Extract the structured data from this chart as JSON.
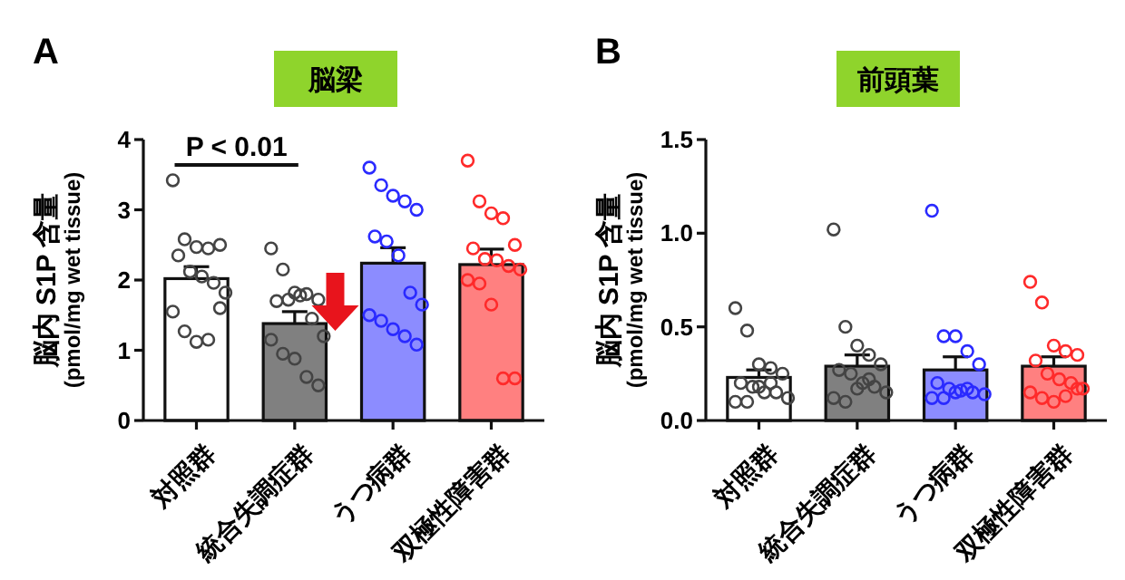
{
  "chart_data": [
    {
      "type": "bar",
      "title": "脳梁",
      "ylabel": "脳内 S1P 含量\n(pmol/mg wet tissue)",
      "annotations": [
        "A",
        "P < 0.01"
      ],
      "categories": [
        "対照群",
        "統合失調症群",
        "うつ病群",
        "双極性障害群"
      ],
      "ylim": [
        0,
        4
      ],
      "yticks": [
        0,
        1,
        2,
        3,
        4
      ],
      "series": [
        {
          "type": "bar",
          "values": [
            2.02,
            1.38,
            2.24,
            2.22
          ],
          "errors": [
            0.17,
            0.17,
            0.22,
            0.22
          ],
          "colors": [
            "#ffffff",
            "#808080",
            "#8c8cff",
            "#ff8080"
          ]
        },
        {
          "type": "scatter",
          "marker": "circle",
          "x": [
            "対照群",
            "対照群",
            "対照群",
            "対照群",
            "対照群",
            "対照群",
            "対照群",
            "対照群",
            "対照群",
            "対照群",
            "対照群",
            "対照群",
            "対照群",
            "対照群",
            "対照群",
            "統合失調症群",
            "統合失調症群",
            "統合失調症群",
            "統合失調症群",
            "統合失調症群",
            "統合失調症群",
            "統合失調症群",
            "統合失調症群",
            "統合失調症群",
            "統合失調症群",
            "統合失調症群",
            "統合失調症群",
            "統合失調症群",
            "統合失調症群",
            "統合失調症群",
            "うつ病群",
            "うつ病群",
            "うつ病群",
            "うつ病群",
            "うつ病群",
            "うつ病群",
            "うつ病群",
            "うつ病群",
            "うつ病群",
            "うつ病群",
            "うつ病群",
            "うつ病群",
            "うつ病群",
            "うつ病群",
            "うつ病群",
            "双極性障害群",
            "双極性障害群",
            "双極性障害群",
            "双極性障害群",
            "双極性障害群",
            "双極性障害群",
            "双極性障害群",
            "双極性障害群",
            "双極性障害群",
            "双極性障害群",
            "双極性障害群",
            "双極性障害群",
            "双極性障害群",
            "双極性障害群",
            "双極性障害群"
          ],
          "values": [
            3.42,
            2.58,
            2.47,
            2.45,
            2.5,
            2.35,
            2.12,
            2.05,
            1.96,
            1.82,
            1.55,
            1.27,
            1.12,
            1.15,
            1.6,
            2.45,
            2.15,
            1.82,
            1.8,
            1.72,
            1.7,
            1.72,
            1.78,
            1.45,
            1.2,
            1.15,
            0.95,
            0.88,
            0.62,
            0.5,
            3.6,
            3.35,
            3.2,
            3.12,
            3.0,
            2.62,
            2.55,
            2.35,
            1.82,
            1.65,
            1.5,
            1.42,
            1.3,
            1.2,
            1.08,
            3.7,
            3.12,
            2.95,
            2.88,
            2.5,
            2.45,
            2.3,
            2.28,
            2.2,
            2.15,
            2.0,
            1.95,
            1.65,
            0.6,
            0.6
          ],
          "colors": [
            "#444444",
            "#444444",
            "#444444",
            "#444444",
            "#444444",
            "#444444",
            "#444444",
            "#444444",
            "#444444",
            "#444444",
            "#444444",
            "#444444",
            "#444444",
            "#444444",
            "#444444",
            "#444444",
            "#444444",
            "#444444",
            "#444444",
            "#444444",
            "#444444",
            "#444444",
            "#444444",
            "#444444",
            "#444444",
            "#444444",
            "#444444",
            "#444444",
            "#444444",
            "#444444",
            "#2a2aff",
            "#2a2aff",
            "#2a2aff",
            "#2a2aff",
            "#2a2aff",
            "#2a2aff",
            "#2a2aff",
            "#2a2aff",
            "#2a2aff",
            "#2a2aff",
            "#2a2aff",
            "#2a2aff",
            "#2a2aff",
            "#2a2aff",
            "#2a2aff",
            "#ff2a2a",
            "#ff2a2a",
            "#ff2a2a",
            "#ff2a2a",
            "#ff2a2a",
            "#ff2a2a",
            "#ff2a2a",
            "#ff2a2a",
            "#ff2a2a",
            "#ff2a2a",
            "#ff2a2a",
            "#ff2a2a",
            "#ff2a2a",
            "#ff2a2a",
            "#ff2a2a"
          ]
        }
      ]
    },
    {
      "type": "bar",
      "title": "前頭葉",
      "ylabel": "脳内 S1P 含量\n(pmol/mg wet tissue)",
      "annotations": [
        "B"
      ],
      "categories": [
        "対照群",
        "統合失調症群",
        "うつ病群",
        "双極性障害群"
      ],
      "ylim": [
        0,
        1.5
      ],
      "yticks": [
        {
          "value": 0,
          "label": "0.0"
        },
        0.5,
        {
          "value": 1,
          "label": "1.0"
        },
        1.5
      ],
      "series": [
        {
          "type": "bar",
          "values": [
            0.23,
            0.29,
            0.27,
            0.29
          ],
          "errors": [
            0.04,
            0.06,
            0.07,
            0.05
          ],
          "colors": [
            "#ffffff",
            "#808080",
            "#8c8cff",
            "#ff8080"
          ]
        },
        {
          "type": "scatter",
          "marker": "circle",
          "x": [
            "対照群",
            "対照群",
            "対照群",
            "対照群",
            "対照群",
            "対照群",
            "対照群",
            "対照群",
            "対照群",
            "対照群",
            "対照群",
            "対照群",
            "対照群",
            "対照群",
            "統合失調症群",
            "統合失調症群",
            "統合失調症群",
            "統合失調症群",
            "統合失調症群",
            "統合失調症群",
            "統合失調症群",
            "統合失調症群",
            "統合失調症群",
            "統合失調症群",
            "統合失調症群",
            "統合失調症群",
            "統合失調症群",
            "統合失調症群",
            "うつ病群",
            "うつ病群",
            "うつ病群",
            "うつ病群",
            "うつ病群",
            "うつ病群",
            "うつ病群",
            "うつ病群",
            "うつ病群",
            "うつ病群",
            "うつ病群",
            "うつ病群",
            "うつ病群",
            "うつ病群",
            "双極性障害群",
            "双極性障害群",
            "双極性障害群",
            "双極性障害群",
            "双極性障害群",
            "双極性障害群",
            "双極性障害群",
            "双極性障害群",
            "双極性障害群",
            "双極性障害群",
            "双極性障害群",
            "双極性障害群",
            "双極性障害群",
            "双極性障害群",
            "双極性障害群"
          ],
          "values": [
            0.6,
            0.48,
            0.3,
            0.28,
            0.25,
            0.2,
            0.18,
            0.15,
            0.15,
            0.12,
            0.1,
            0.1,
            0.18,
            0.2,
            1.02,
            0.5,
            0.4,
            0.35,
            0.3,
            0.27,
            0.25,
            0.2,
            0.18,
            0.15,
            0.12,
            0.1,
            0.17,
            0.22,
            1.12,
            0.45,
            0.45,
            0.37,
            0.3,
            0.2,
            0.17,
            0.16,
            0.15,
            0.14,
            0.12,
            0.12,
            0.15,
            0.17,
            0.74,
            0.63,
            0.4,
            0.37,
            0.35,
            0.32,
            0.25,
            0.22,
            0.2,
            0.17,
            0.15,
            0.12,
            0.1,
            0.13,
            0.17
          ],
          "colors": [
            "#444444",
            "#444444",
            "#444444",
            "#444444",
            "#444444",
            "#444444",
            "#444444",
            "#444444",
            "#444444",
            "#444444",
            "#444444",
            "#444444",
            "#444444",
            "#444444",
            "#444444",
            "#444444",
            "#444444",
            "#444444",
            "#444444",
            "#444444",
            "#444444",
            "#444444",
            "#444444",
            "#444444",
            "#444444",
            "#444444",
            "#444444",
            "#444444",
            "#2a2aff",
            "#2a2aff",
            "#2a2aff",
            "#2a2aff",
            "#2a2aff",
            "#2a2aff",
            "#2a2aff",
            "#2a2aff",
            "#2a2aff",
            "#2a2aff",
            "#2a2aff",
            "#2a2aff",
            "#2a2aff",
            "#2a2aff",
            "#ff2a2a",
            "#ff2a2a",
            "#ff2a2a",
            "#ff2a2a",
            "#ff2a2a",
            "#ff2a2a",
            "#ff2a2a",
            "#ff2a2a",
            "#ff2a2a",
            "#ff2a2a",
            "#ff2a2a",
            "#ff2a2a",
            "#ff2a2a",
            "#ff2a2a",
            "#ff2a2a"
          ]
        }
      ]
    }
  ]
}
